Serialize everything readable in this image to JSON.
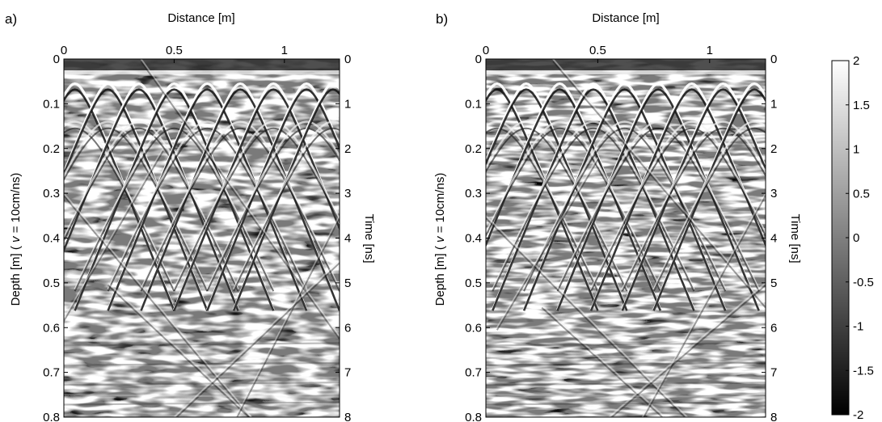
{
  "chart_data": [
    {
      "type": "heatmap",
      "panel_label": "a)",
      "xlabel": "Distance [m]",
      "ylabel_left": "Depth [m] ( v = 10cm/ns)",
      "ylabel_right": "Time [ns]",
      "x_ticks": [
        "0",
        "0.5",
        "1"
      ],
      "x_tick_values": [
        0,
        0.5,
        1
      ],
      "xlim": [
        0,
        1.25
      ],
      "depth_ticks": [
        "0",
        "0.1",
        "0.2",
        "0.3",
        "0.4",
        "0.5",
        "0.6",
        "0.7",
        "0.8"
      ],
      "depth_tick_values": [
        0,
        0.1,
        0.2,
        0.3,
        0.4,
        0.5,
        0.6,
        0.7,
        0.8
      ],
      "time_ticks": [
        "0",
        "1",
        "2",
        "3",
        "4",
        "5",
        "6",
        "7",
        "8"
      ],
      "time_tick_values": [
        0,
        1,
        2,
        3,
        4,
        5,
        6,
        7,
        8
      ],
      "depth_lim": [
        0,
        0.8
      ],
      "hyperbola_apex_x": [
        0.05,
        0.2,
        0.34,
        0.5,
        0.65,
        0.8,
        0.95,
        1.1,
        1.22
      ],
      "seed": 3
    },
    {
      "type": "heatmap",
      "panel_label": "b)",
      "xlabel": "Distance [m]",
      "ylabel_left": "Depth [m] ( v = 10cm/ns)",
      "ylabel_right": "Time [ns]",
      "x_ticks": [
        "0",
        "0.5",
        "1"
      ],
      "x_tick_values": [
        0,
        0.5,
        1
      ],
      "xlim": [
        0,
        1.25
      ],
      "depth_ticks": [
        "0",
        "0.1",
        "0.2",
        "0.3",
        "0.4",
        "0.5",
        "0.6",
        "0.7",
        "0.8"
      ],
      "depth_tick_values": [
        0,
        0.1,
        0.2,
        0.3,
        0.4,
        0.5,
        0.6,
        0.7,
        0.8
      ],
      "time_ticks": [
        "0",
        "1",
        "2",
        "3",
        "4",
        "5",
        "6",
        "7",
        "8"
      ],
      "time_tick_values": [
        0,
        1,
        2,
        3,
        4,
        5,
        6,
        7,
        8
      ],
      "depth_lim": [
        0,
        0.8
      ],
      "hyperbola_apex_x": [
        0.05,
        0.18,
        0.33,
        0.48,
        0.62,
        0.77,
        0.92,
        1.06,
        1.2
      ],
      "seed": 11
    }
  ],
  "colorbar": {
    "ticks": [
      "2",
      "1.5",
      "1",
      "0.5",
      "0",
      "-0.5",
      "-1",
      "-1.5",
      "-2"
    ],
    "tick_values": [
      2,
      1.5,
      1,
      0.5,
      0,
      -0.5,
      -1,
      -1.5,
      -2
    ],
    "range": [
      -2,
      2
    ],
    "colors": [
      "#000000",
      "#ffffff"
    ]
  }
}
